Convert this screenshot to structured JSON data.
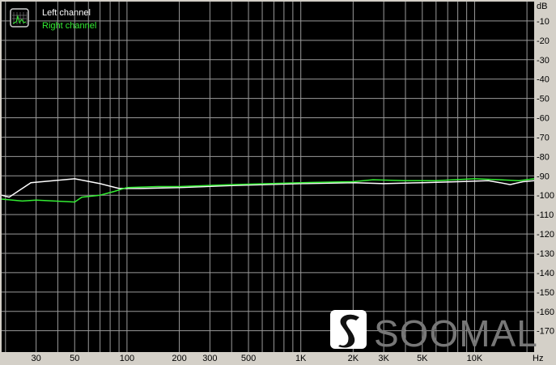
{
  "chart_data": {
    "type": "line",
    "title": "",
    "xlabel": "",
    "ylabel": "",
    "x_unit": "Hz",
    "y_unit": "dB",
    "x_scale": "log",
    "xlim": [
      19,
      22000
    ],
    "ylim": [
      -181,
      0
    ],
    "grid": true,
    "legend_position": "top-left",
    "background": "#000000",
    "grid_color": "#9a9a9a",
    "x_ticks": [
      {
        "value": 30,
        "label": "30"
      },
      {
        "value": 50,
        "label": "50"
      },
      {
        "value": 100,
        "label": "100"
      },
      {
        "value": 200,
        "label": "200"
      },
      {
        "value": 300,
        "label": "300"
      },
      {
        "value": 500,
        "label": "500"
      },
      {
        "value": 1000,
        "label": "1K"
      },
      {
        "value": 2000,
        "label": "2K"
      },
      {
        "value": 3000,
        "label": "3K"
      },
      {
        "value": 5000,
        "label": "5K"
      },
      {
        "value": 10000,
        "label": "10K"
      }
    ],
    "y_ticks": [
      -10,
      -20,
      -30,
      -40,
      -50,
      -60,
      -70,
      -80,
      -90,
      -100,
      -110,
      -120,
      -130,
      -140,
      -150,
      -160,
      -170
    ],
    "series": [
      {
        "name": "Left channel",
        "color": "#ffffff",
        "points": [
          [
            19,
            -100
          ],
          [
            21,
            -101
          ],
          [
            28,
            -93.5
          ],
          [
            50,
            -91.5
          ],
          [
            70,
            -94
          ],
          [
            90,
            -96.5
          ],
          [
            120,
            -96.5
          ],
          [
            200,
            -96
          ],
          [
            400,
            -95
          ],
          [
            1000,
            -94
          ],
          [
            2000,
            -93.5
          ],
          [
            3000,
            -94
          ],
          [
            5000,
            -93.5
          ],
          [
            8000,
            -93
          ],
          [
            12000,
            -92.5
          ],
          [
            14000,
            -93.5
          ],
          [
            16000,
            -94.5
          ],
          [
            19000,
            -93
          ],
          [
            22000,
            -92.5
          ]
        ]
      },
      {
        "name": "Right channel",
        "color": "#33ee33",
        "points": [
          [
            19,
            -102
          ],
          [
            25,
            -103
          ],
          [
            30,
            -102.5
          ],
          [
            50,
            -103.5
          ],
          [
            55,
            -101
          ],
          [
            70,
            -100
          ],
          [
            85,
            -98
          ],
          [
            100,
            -96
          ],
          [
            150,
            -95.5
          ],
          [
            200,
            -95.5
          ],
          [
            400,
            -94.5
          ],
          [
            1000,
            -93.5
          ],
          [
            2000,
            -93
          ],
          [
            2600,
            -92
          ],
          [
            4000,
            -92.5
          ],
          [
            6000,
            -92.5
          ],
          [
            10000,
            -91.5
          ],
          [
            14000,
            -92
          ],
          [
            18000,
            -92.5
          ],
          [
            22000,
            -91.5
          ]
        ]
      }
    ]
  },
  "watermark": {
    "text": "SOOMAL"
  }
}
